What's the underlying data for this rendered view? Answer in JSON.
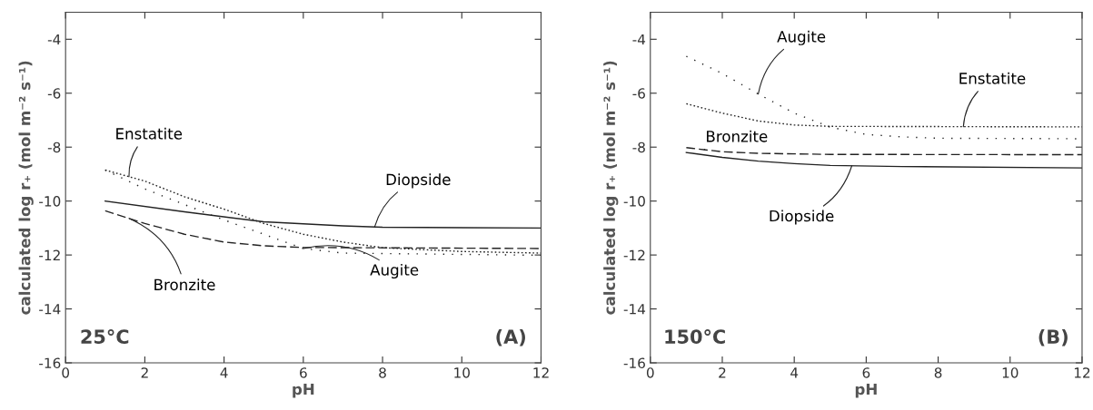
{
  "chart_data": [
    {
      "type": "line",
      "xlabel": "pH",
      "ylabel": "calculated log r₊ (mol m⁻² s⁻¹)",
      "xlim": [
        0,
        12
      ],
      "ylim": [
        -16,
        -3
      ],
      "xticks": [
        0,
        2,
        4,
        6,
        8,
        10,
        12
      ],
      "yticks": [
        -16,
        -14,
        -12,
        -10,
        -8,
        -6,
        -4
      ],
      "grid": false,
      "legend": false,
      "annotations": [
        "25°C",
        "(A)"
      ],
      "series": [
        {
          "name": "Diopside",
          "color": "#222222",
          "line_style": "solid",
          "x": [
            1,
            3,
            5,
            7,
            8,
            12
          ],
          "values": [
            -10.0,
            -10.4,
            -10.77,
            -10.92,
            -10.97,
            -11.0
          ]
        },
        {
          "name": "Enstatite",
          "color": "#222222",
          "line_style": "dotted",
          "x": [
            1,
            2,
            3,
            4,
            5,
            6,
            7,
            8,
            10,
            12
          ],
          "values": [
            -8.85,
            -9.26,
            -9.84,
            -10.3,
            -10.83,
            -11.23,
            -11.52,
            -11.73,
            -11.87,
            -11.93
          ]
        },
        {
          "name": "Augite",
          "color": "#222222",
          "line_style": "loosely dotted",
          "x": [
            1,
            2,
            3,
            4,
            5,
            6,
            7,
            12
          ],
          "values": [
            -8.85,
            -9.55,
            -10.13,
            -10.7,
            -11.23,
            -11.76,
            -11.93,
            -12.01
          ]
        },
        {
          "name": "Bronzite",
          "color": "#222222",
          "line_style": "dashed",
          "x": [
            1,
            2,
            3,
            4,
            5,
            6,
            12
          ],
          "values": [
            -10.36,
            -10.83,
            -11.23,
            -11.52,
            -11.66,
            -11.72,
            -11.76
          ]
        }
      ]
    },
    {
      "type": "line",
      "xlabel": "pH",
      "ylabel": "calculated log r₊ (mol m⁻² s⁻¹)",
      "xlim": [
        0,
        12
      ],
      "ylim": [
        -16,
        -3
      ],
      "xticks": [
        0,
        2,
        4,
        6,
        8,
        10,
        12
      ],
      "yticks": [
        -16,
        -14,
        -12,
        -10,
        -8,
        -6,
        -4
      ],
      "grid": false,
      "legend": false,
      "annotations": [
        "150°C",
        "(B)"
      ],
      "series": [
        {
          "name": "Diopside",
          "color": "#222222",
          "line_style": "solid",
          "x": [
            1,
            2,
            3,
            4,
            5,
            7,
            12
          ],
          "values": [
            -8.2,
            -8.38,
            -8.52,
            -8.61,
            -8.68,
            -8.72,
            -8.77
          ]
        },
        {
          "name": "Enstatite",
          "color": "#222222",
          "line_style": "dotted",
          "x": [
            1,
            2,
            3,
            4,
            5,
            12
          ],
          "values": [
            -6.39,
            -6.74,
            -7.03,
            -7.18,
            -7.23,
            -7.25
          ]
        },
        {
          "name": "Augite",
          "color": "#222222",
          "line_style": "loosely dotted",
          "x": [
            1,
            2,
            3,
            4,
            5,
            6,
            7,
            8,
            12
          ],
          "values": [
            -4.63,
            -5.27,
            -6.03,
            -6.74,
            -7.26,
            -7.53,
            -7.62,
            -7.67,
            -7.69
          ]
        },
        {
          "name": "Bronzite",
          "color": "#222222",
          "line_style": "dashed",
          "x": [
            1,
            2,
            3,
            5,
            12
          ],
          "values": [
            -8.02,
            -8.17,
            -8.23,
            -8.27,
            -8.28
          ]
        }
      ]
    }
  ]
}
